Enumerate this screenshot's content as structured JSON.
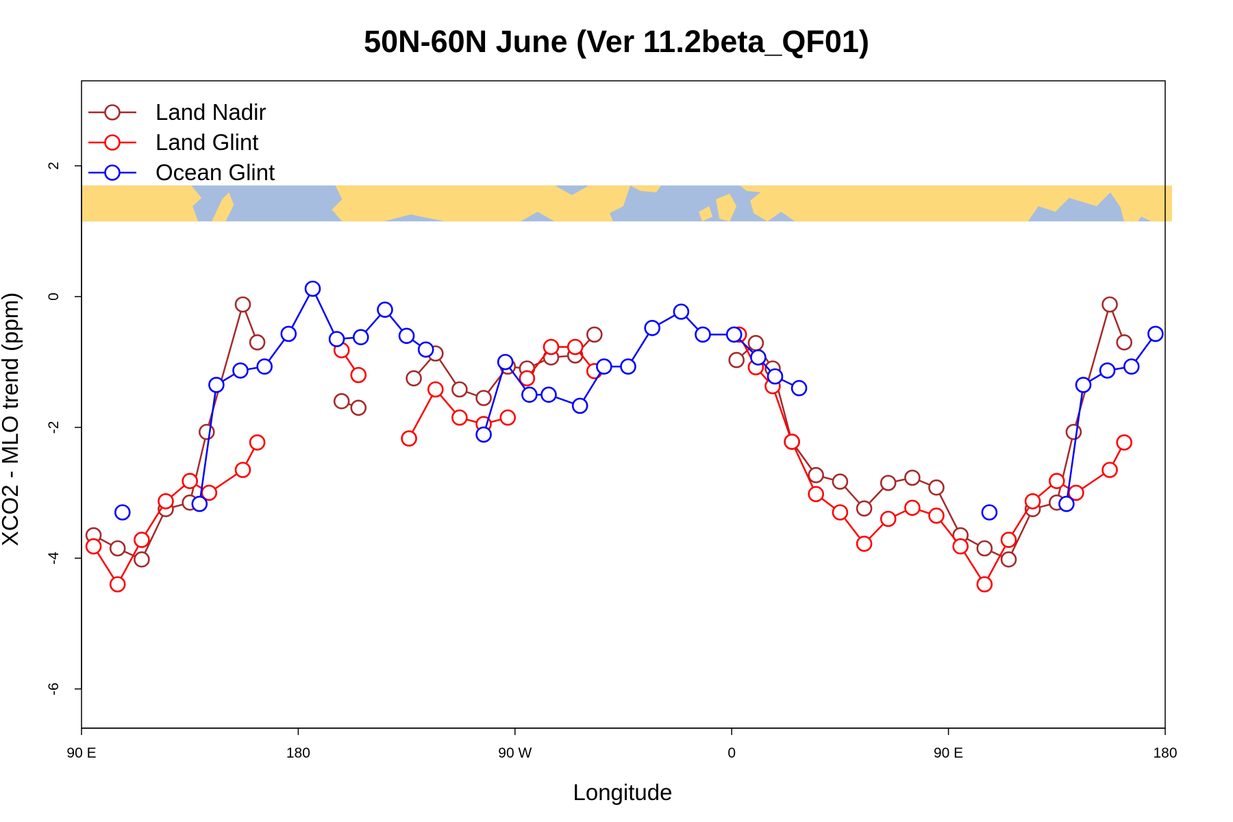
{
  "chart_data": {
    "type": "line",
    "title": "50N-60N June (Ver 11.2beta_QF01)",
    "xlabel": "Longitude",
    "ylabel": "XCO2 - MLO trend (ppm)",
    "xlim": [
      90,
      540
    ],
    "ylim": [
      -6.6,
      3.3
    ],
    "x_ticks": [
      {
        "value": 90,
        "label": "90 E"
      },
      {
        "value": 180,
        "label": "180"
      },
      {
        "value": 270,
        "label": "90 W"
      },
      {
        "value": 360,
        "label": "0"
      },
      {
        "value": 450,
        "label": "90 E"
      },
      {
        "value": 540,
        "label": "180"
      }
    ],
    "y_ticks": [
      {
        "value": 2,
        "label": "2"
      },
      {
        "value": 0,
        "label": "0"
      },
      {
        "value": -2,
        "label": "-2"
      },
      {
        "value": -4,
        "label": "-4"
      },
      {
        "value": -6,
        "label": "-6"
      }
    ],
    "grid": false,
    "legend_position": "top-left",
    "map_strip": {
      "y_top": 1.7,
      "y_bottom": 1.15,
      "land_color": "#fdd97a",
      "ocean_color": "#a7bddf"
    },
    "series": [
      {
        "name": "Land Nadir",
        "color": "#a52a2a",
        "segments": [
          [
            [
              95,
              -3.65
            ],
            [
              105,
              -3.85
            ],
            [
              115,
              -4.02
            ],
            [
              125,
              -3.25
            ],
            [
              135,
              -3.15
            ],
            [
              142,
              -2.07
            ],
            [
              157,
              -0.12
            ],
            [
              163,
              -0.7
            ]
          ],
          [
            [
              198,
              -1.6
            ],
            [
              205,
              -1.7
            ]
          ],
          [
            [
              228,
              -1.25
            ],
            [
              237,
              -0.87
            ],
            [
              247,
              -1.42
            ],
            [
              257,
              -1.55
            ],
            [
              267,
              -1.07
            ],
            [
              275,
              -1.1
            ],
            [
              285,
              -0.93
            ],
            [
              295,
              -0.9
            ],
            [
              303,
              -0.58
            ]
          ],
          [
            [
              362,
              -0.97
            ],
            [
              370,
              -0.71
            ],
            [
              377,
              -1.1
            ],
            [
              385,
              -2.22
            ],
            [
              395,
              -2.73
            ],
            [
              405,
              -2.83
            ],
            [
              415,
              -3.24
            ],
            [
              425,
              -2.85
            ],
            [
              435,
              -2.77
            ],
            [
              445,
              -2.92
            ],
            [
              455,
              -3.65
            ],
            [
              465,
              -3.85
            ],
            [
              475,
              -4.02
            ],
            [
              485,
              -3.25
            ],
            [
              495,
              -3.15
            ],
            [
              502,
              -2.07
            ],
            [
              517,
              -0.12
            ],
            [
              523,
              -0.7
            ]
          ]
        ]
      },
      {
        "name": "Land Glint",
        "color": "#ff0000",
        "segments": [
          [
            [
              95,
              -3.82
            ],
            [
              105,
              -4.4
            ],
            [
              115,
              -3.72
            ],
            [
              125,
              -3.13
            ],
            [
              135,
              -2.82
            ],
            [
              143,
              -3.0
            ],
            [
              157,
              -2.65
            ],
            [
              163,
              -2.23
            ]
          ],
          [
            [
              198,
              -0.82
            ],
            [
              205,
              -1.2
            ]
          ],
          [
            [
              226,
              -2.17
            ],
            [
              237,
              -1.42
            ],
            [
              247,
              -1.85
            ],
            [
              257,
              -1.95
            ],
            [
              267,
              -1.85
            ]
          ],
          [
            [
              275,
              -1.25
            ],
            [
              285,
              -0.77
            ],
            [
              295,
              -0.77
            ],
            [
              303,
              -1.14
            ]
          ],
          [
            [
              363,
              -0.58
            ],
            [
              370,
              -1.08
            ],
            [
              377,
              -1.37
            ],
            [
              385,
              -2.22
            ],
            [
              395,
              -3.02
            ],
            [
              405,
              -3.3
            ],
            [
              415,
              -3.78
            ],
            [
              425,
              -3.4
            ],
            [
              435,
              -3.23
            ],
            [
              445,
              -3.35
            ],
            [
              455,
              -3.82
            ],
            [
              465,
              -4.4
            ],
            [
              475,
              -3.72
            ],
            [
              485,
              -3.13
            ],
            [
              495,
              -2.82
            ],
            [
              503,
              -3.0
            ],
            [
              517,
              -2.65
            ],
            [
              523,
              -2.23
            ]
          ]
        ]
      },
      {
        "name": "Ocean Glint",
        "color": "#0000ff",
        "segments": [
          [
            [
              107,
              -3.3
            ]
          ],
          [
            [
              139,
              -3.17
            ],
            [
              146,
              -1.35
            ],
            [
              156,
              -1.13
            ],
            [
              166,
              -1.07
            ],
            [
              176,
              -0.57
            ],
            [
              186,
              0.12
            ],
            [
              196,
              -0.65
            ],
            [
              206,
              -0.62
            ],
            [
              216,
              -0.2
            ],
            [
              225,
              -0.6
            ],
            [
              233,
              -0.81
            ]
          ],
          [
            [
              257,
              -2.11
            ],
            [
              266,
              -1.0
            ],
            [
              276,
              -1.5
            ],
            [
              284,
              -1.5
            ],
            [
              297,
              -1.67
            ],
            [
              307,
              -1.07
            ],
            [
              317,
              -1.07
            ],
            [
              327,
              -0.48
            ],
            [
              339,
              -0.23
            ],
            [
              348,
              -0.58
            ],
            [
              361,
              -0.58
            ],
            [
              371,
              -0.93
            ],
            [
              378,
              -1.22
            ],
            [
              388,
              -1.4
            ]
          ],
          [
            [
              467,
              -3.3
            ]
          ],
          [
            [
              499,
              -3.17
            ],
            [
              506,
              -1.35
            ],
            [
              516,
              -1.13
            ],
            [
              526,
              -1.07
            ],
            [
              536,
              -0.57
            ]
          ]
        ]
      }
    ]
  }
}
